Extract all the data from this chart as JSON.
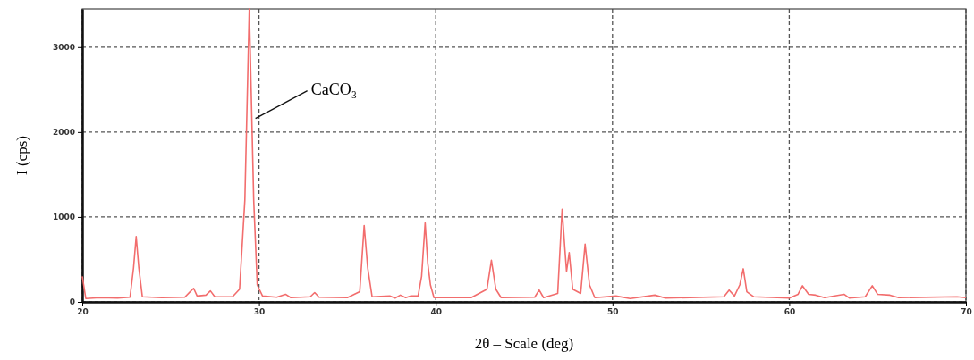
{
  "chart_data": {
    "type": "line",
    "xlabel": "2θ – Scale (deg)",
    "ylabel": "I (cps)",
    "xlim": [
      20,
      70
    ],
    "xticks": [
      20,
      30,
      40,
      50,
      60,
      70
    ],
    "ylim": [
      0,
      3450
    ],
    "yticks": [
      0,
      1000,
      2000,
      3000
    ],
    "grid": true,
    "marker": "none",
    "line_style": "solid",
    "annotations": [
      {
        "text": "CaCO₃",
        "x": 29.8,
        "y": 2160
      }
    ],
    "series": [
      {
        "color": "#f26d6d",
        "x": [
          20.0,
          20.2,
          21,
          22,
          22.7,
          22.9,
          23.05,
          23.2,
          23.4,
          24.5,
          25.8,
          26.1,
          26.3,
          26.5,
          27.0,
          27.25,
          27.5,
          28.5,
          28.9,
          29.2,
          29.45,
          29.7,
          29.9,
          30.2,
          31.0,
          31.5,
          31.8,
          32.9,
          33.15,
          33.4,
          35.0,
          35.7,
          35.95,
          36.15,
          36.4,
          37.4,
          37.7,
          38.0,
          38.3,
          38.6,
          39.0,
          39.2,
          39.4,
          39.55,
          39.7,
          39.9,
          42.0,
          42.9,
          43.15,
          43.4,
          43.7,
          45.6,
          45.85,
          46.1,
          46.9,
          47.15,
          47.3,
          47.4,
          47.55,
          47.75,
          48.2,
          48.45,
          48.7,
          49.0,
          50.2,
          51,
          52.4,
          53,
          56.3,
          56.6,
          56.9,
          57.2,
          57.4,
          57.6,
          58,
          60.0,
          60.5,
          60.75,
          61.1,
          61.5,
          62,
          63.1,
          63.4,
          64.3,
          64.7,
          65.0,
          65.7,
          66.2,
          69.5,
          70.0
        ],
        "values": [
          300,
          40,
          50,
          45,
          55,
          400,
          770,
          400,
          60,
          50,
          55,
          120,
          160,
          70,
          80,
          130,
          60,
          60,
          150,
          1200,
          3450,
          1200,
          200,
          70,
          55,
          90,
          50,
          60,
          110,
          55,
          50,
          120,
          900,
          400,
          60,
          70,
          45,
          80,
          50,
          70,
          70,
          300,
          930,
          450,
          200,
          50,
          50,
          150,
          490,
          150,
          50,
          55,
          140,
          50,
          100,
          1090,
          640,
          360,
          580,
          150,
          100,
          680,
          200,
          50,
          70,
          40,
          80,
          45,
          60,
          140,
          70,
          200,
          390,
          120,
          60,
          45,
          90,
          190,
          90,
          80,
          50,
          90,
          45,
          60,
          190,
          90,
          80,
          50,
          60,
          50
        ]
      }
    ]
  }
}
